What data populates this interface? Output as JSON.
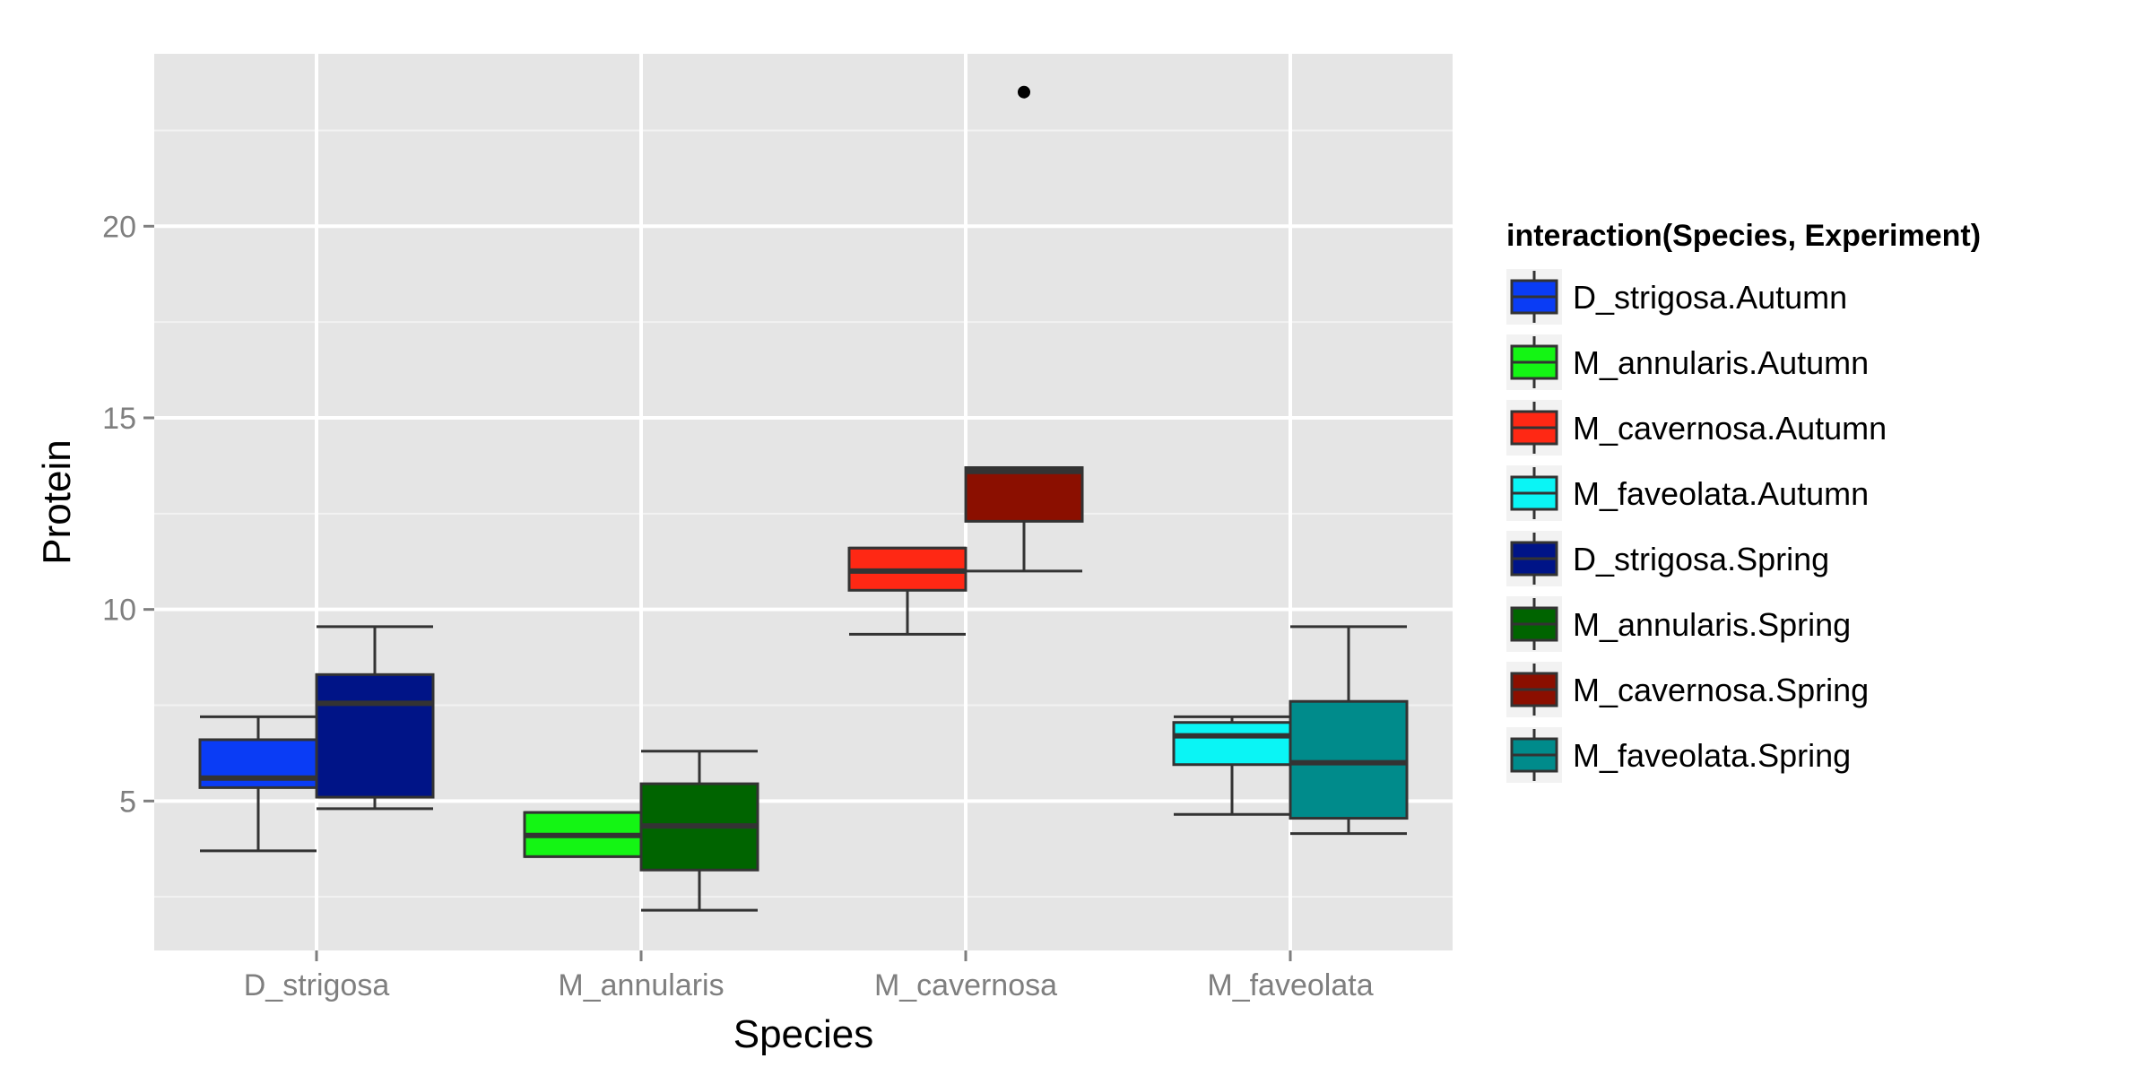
{
  "chart_data": {
    "type": "boxplot",
    "xlabel": "Species",
    "ylabel": "Protein",
    "categories": [
      "D_strigosa",
      "M_annularis",
      "M_cavernosa",
      "M_faveolata"
    ],
    "yticks": [
      5,
      10,
      15,
      20
    ],
    "ylim": [
      1.1,
      24.5
    ],
    "grid": true,
    "legend": {
      "title": "interaction(Species, Experiment)",
      "position": "right",
      "entries": [
        "D_strigosa.Autumn",
        "M_annularis.Autumn",
        "M_cavernosa.Autumn",
        "M_faveolata.Autumn",
        "D_strigosa.Spring",
        "M_annularis.Spring",
        "M_cavernosa.Spring",
        "M_faveolata.Spring"
      ]
    },
    "series": [
      {
        "name": "D_strigosa.Autumn",
        "category": "D_strigosa",
        "experiment": "Autumn",
        "color": "#0a3cf5",
        "min": 3.7,
        "q1": 5.35,
        "median": 5.6,
        "q3": 6.6,
        "max": 7.2,
        "outliers": []
      },
      {
        "name": "D_strigosa.Spring",
        "category": "D_strigosa",
        "experiment": "Spring",
        "color": "#001487",
        "min": 4.8,
        "q1": 5.1,
        "median": 7.55,
        "q3": 8.3,
        "max": 9.55,
        "outliers": []
      },
      {
        "name": "M_annularis.Autumn",
        "category": "M_annularis",
        "experiment": "Autumn",
        "color": "#14f514",
        "min": 3.55,
        "q1": 3.55,
        "median": 4.1,
        "q3": 4.7,
        "max": 4.7,
        "outliers": []
      },
      {
        "name": "M_annularis.Spring",
        "category": "M_annularis",
        "experiment": "Spring",
        "color": "#006400",
        "min": 2.15,
        "q1": 3.2,
        "median": 4.35,
        "q3": 5.45,
        "max": 6.3,
        "outliers": []
      },
      {
        "name": "M_cavernosa.Autumn",
        "category": "M_cavernosa",
        "experiment": "Autumn",
        "color": "#ff2814",
        "min": 9.35,
        "q1": 10.5,
        "median": 11.0,
        "q3": 11.6,
        "max": 11.6,
        "outliers": []
      },
      {
        "name": "M_cavernosa.Spring",
        "category": "M_cavernosa",
        "experiment": "Spring",
        "color": "#8b0f00",
        "min": 11.0,
        "q1": 12.3,
        "median": 13.6,
        "q3": 13.7,
        "max": 13.7,
        "outliers": [
          23.5
        ]
      },
      {
        "name": "M_faveolata.Autumn",
        "category": "M_faveolata",
        "experiment": "Autumn",
        "color": "#0af5f5",
        "min": 4.65,
        "q1": 5.95,
        "median": 6.7,
        "q3": 7.05,
        "max": 7.2,
        "outliers": []
      },
      {
        "name": "M_faveolata.Spring",
        "category": "M_faveolata",
        "experiment": "Spring",
        "color": "#008b8b",
        "min": 4.15,
        "q1": 4.55,
        "median": 6.0,
        "q3": 7.6,
        "max": 9.55,
        "outliers": []
      }
    ]
  }
}
